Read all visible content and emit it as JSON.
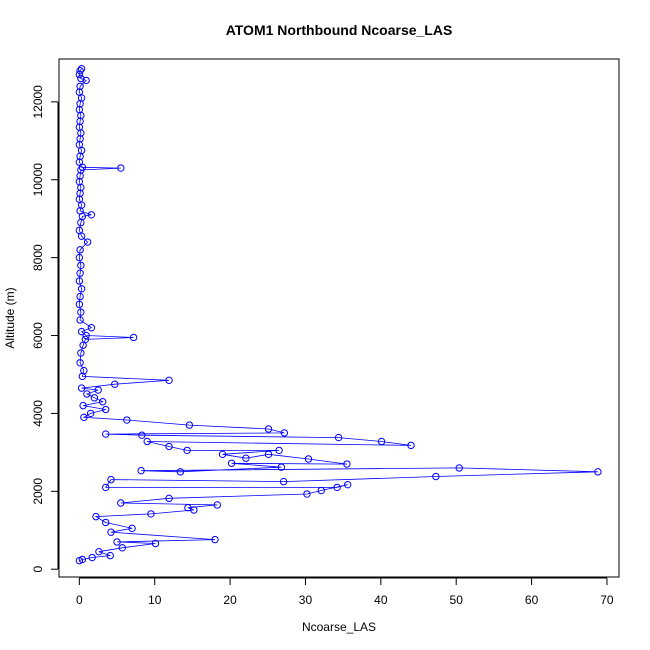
{
  "chart_data": {
    "type": "line",
    "title": "ATOM1 Northbound Ncoarse_LAS",
    "xlabel": "Ncoarse_LAS",
    "ylabel": "Altitude (m)",
    "xlim": [
      -2.7,
      71.6
    ],
    "ylim": [
      -200,
      13100
    ],
    "xticks": [
      0,
      10,
      20,
      30,
      40,
      50,
      60,
      70
    ],
    "yticks": [
      0,
      2000,
      4000,
      6000,
      8000,
      10000,
      12000
    ],
    "grid": false,
    "legend": "none",
    "series": [
      {
        "color": "#0000ff",
        "marker": "open-circle",
        "line": true,
        "points": [
          [
            0.3,
            12850
          ],
          [
            0.1,
            12800
          ],
          [
            0.0,
            12700
          ],
          [
            0.2,
            12600
          ],
          [
            0.9,
            12550
          ],
          [
            0.1,
            12400
          ],
          [
            0.0,
            12250
          ],
          [
            0.3,
            12100
          ],
          [
            0.1,
            11950
          ],
          [
            0.0,
            11800
          ],
          [
            0.2,
            11650
          ],
          [
            0.1,
            11500
          ],
          [
            0.0,
            11350
          ],
          [
            0.2,
            11200
          ],
          [
            0.1,
            11050
          ],
          [
            0.0,
            10900
          ],
          [
            0.3,
            10750
          ],
          [
            0.1,
            10600
          ],
          [
            0.0,
            10450
          ],
          [
            0.4,
            10320
          ],
          [
            5.5,
            10300
          ],
          [
            0.2,
            10250
          ],
          [
            0.1,
            10100
          ],
          [
            0.0,
            9950
          ],
          [
            0.2,
            9800
          ],
          [
            0.1,
            9650
          ],
          [
            0.0,
            9500
          ],
          [
            0.3,
            9350
          ],
          [
            0.1,
            9200
          ],
          [
            1.6,
            9100
          ],
          [
            0.4,
            9060
          ],
          [
            0.2,
            8900
          ],
          [
            0.0,
            8700
          ],
          [
            0.3,
            8550
          ],
          [
            1.1,
            8400
          ],
          [
            0.1,
            8200
          ],
          [
            0.0,
            8000
          ],
          [
            0.2,
            7800
          ],
          [
            0.1,
            7600
          ],
          [
            0.0,
            7400
          ],
          [
            0.3,
            7200
          ],
          [
            0.1,
            7000
          ],
          [
            0.0,
            6800
          ],
          [
            0.2,
            6600
          ],
          [
            0.1,
            6400
          ],
          [
            1.6,
            6200
          ],
          [
            0.3,
            6100
          ],
          [
            0.9,
            6000
          ],
          [
            7.2,
            5950
          ],
          [
            0.8,
            5900
          ],
          [
            0.5,
            5750
          ],
          [
            0.2,
            5550
          ],
          [
            0.1,
            5300
          ],
          [
            0.6,
            5100
          ],
          [
            0.4,
            4950
          ],
          [
            11.9,
            4850
          ],
          [
            4.7,
            4750
          ],
          [
            0.3,
            4650
          ],
          [
            2.5,
            4600
          ],
          [
            1.0,
            4500
          ],
          [
            2.0,
            4400
          ],
          [
            3.1,
            4300
          ],
          [
            0.5,
            4200
          ],
          [
            3.5,
            4100
          ],
          [
            1.5,
            4000
          ],
          [
            0.6,
            3900
          ],
          [
            6.3,
            3830
          ],
          [
            14.6,
            3700
          ],
          [
            25.1,
            3600
          ],
          [
            27.2,
            3500
          ],
          [
            3.5,
            3470
          ],
          [
            8.3,
            3440
          ],
          [
            34.4,
            3380
          ],
          [
            40.1,
            3280
          ],
          [
            44.0,
            3180
          ],
          [
            9.0,
            3280
          ],
          [
            11.9,
            3150
          ],
          [
            14.3,
            3050
          ],
          [
            26.5,
            3050
          ],
          [
            19.0,
            2950
          ],
          [
            22.1,
            2850
          ],
          [
            25.1,
            2950
          ],
          [
            30.4,
            2830
          ],
          [
            35.5,
            2700
          ],
          [
            20.2,
            2720
          ],
          [
            26.8,
            2620
          ],
          [
            13.4,
            2500
          ],
          [
            8.2,
            2530
          ],
          [
            50.4,
            2600
          ],
          [
            68.8,
            2500
          ],
          [
            47.3,
            2380
          ],
          [
            27.1,
            2250
          ],
          [
            4.2,
            2300
          ],
          [
            3.5,
            2100
          ],
          [
            34.2,
            2100
          ],
          [
            35.6,
            2170
          ],
          [
            32.1,
            2020
          ],
          [
            30.2,
            1930
          ],
          [
            11.9,
            1820
          ],
          [
            5.5,
            1700
          ],
          [
            18.3,
            1650
          ],
          [
            14.4,
            1580
          ],
          [
            15.2,
            1520
          ],
          [
            9.5,
            1420
          ],
          [
            2.2,
            1350
          ],
          [
            3.5,
            1200
          ],
          [
            7.0,
            1050
          ],
          [
            4.2,
            950
          ],
          [
            18.0,
            760
          ],
          [
            5.0,
            700
          ],
          [
            10.1,
            660
          ],
          [
            5.7,
            550
          ],
          [
            2.6,
            450
          ],
          [
            4.1,
            350
          ],
          [
            1.7,
            300
          ],
          [
            0.4,
            250
          ],
          [
            0.0,
            220
          ]
        ]
      }
    ]
  }
}
